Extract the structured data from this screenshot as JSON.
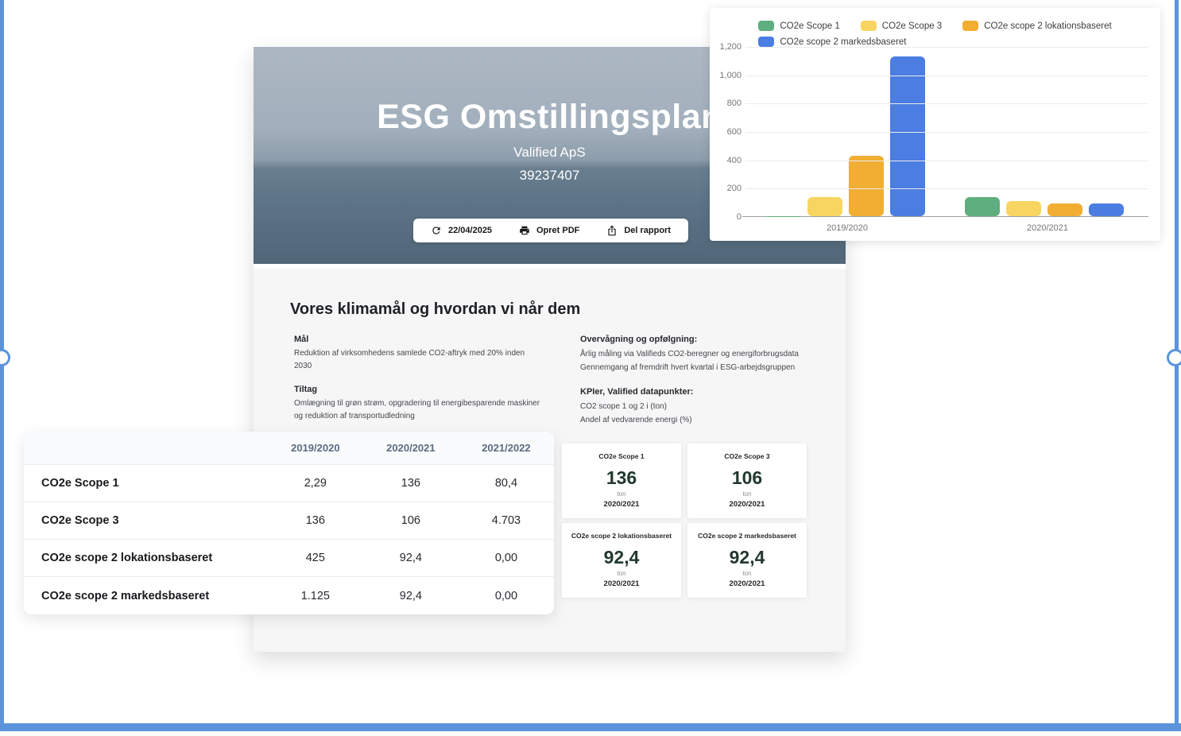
{
  "frame": {
    "accent_color": "#5b94da"
  },
  "hero": {
    "title": "ESG Omstillingsplan",
    "company": "Valified ApS",
    "company_number": "39237407",
    "toolbar": {
      "date_label": "22/04/2025",
      "pdf_label": "Opret PDF",
      "share_label": "Del rapport",
      "icons": [
        "refresh-icon",
        "printer-icon",
        "share-icon"
      ]
    }
  },
  "climate_section": {
    "heading": "Vores klimamål og hvordan vi når dem",
    "goal_label": "Mål",
    "goal_text": "Reduktion af virksomhedens samlede CO2-aftryk med 20% inden 2030",
    "actions_label": "Tiltag",
    "actions_text": "Omlægning til grøn strøm, opgradering til energibesparende maskiner og reduktion af transportudledning",
    "monitoring_label": "Overvågning og opfølgning:",
    "monitoring_lines": [
      "Årlig måling via Valifieds CO2-beregner og energiforbrugsdata",
      "Gennemgang af fremdrift hvert kvartal i ESG-arbejdsgruppen"
    ],
    "kpi_label": "KPIer, Valified datapunkter:",
    "kpi_lines": [
      "CO2 scope 1 og 2 i (ton)",
      "Andel af vedvarende energi (%)"
    ]
  },
  "table": {
    "columns": [
      "2019/2020",
      "2020/2021",
      "2021/2022"
    ],
    "rows": [
      {
        "label": "CO2e Scope 1",
        "values": [
          "2,29",
          "136",
          "80,4"
        ]
      },
      {
        "label": "CO2e Scope 3",
        "values": [
          "136",
          "106",
          "4.703"
        ]
      },
      {
        "label": "CO2e scope 2 lokationsbaseret",
        "values": [
          "425",
          "92,4",
          "0,00"
        ]
      },
      {
        "label": "CO2e scope 2 markedsbaseret",
        "values": [
          "1.125",
          "92,4",
          "0,00"
        ]
      }
    ]
  },
  "kpi_cards": [
    {
      "title": "CO2e Scope 1",
      "value": "136",
      "unit": "ton",
      "period": "2020/2021"
    },
    {
      "title": "CO2e Scope 3",
      "value": "106",
      "unit": "ton",
      "period": "2020/2021"
    },
    {
      "title": "CO2e scope 2 lokationsbaseret",
      "value": "92,4",
      "unit": "ton",
      "period": "2020/2021"
    },
    {
      "title": "CO2e scope 2 markedsbaseret",
      "value": "92,4",
      "unit": "ton",
      "period": "2020/2021"
    }
  ],
  "chart_data": {
    "type": "bar",
    "categories": [
      "2019/2020",
      "2020/2021"
    ],
    "series": [
      {
        "name": "CO2e Scope 1",
        "color": "#5fae7f",
        "values": [
          2.29,
          136
        ]
      },
      {
        "name": "CO2e Scope 3",
        "color": "#f7d560",
        "values": [
          136,
          106
        ]
      },
      {
        "name": "CO2e scope 2 lokationsbaseret",
        "color": "#f2ad33",
        "values": [
          425,
          92.4
        ]
      },
      {
        "name": "CO2e scope 2 markedsbaseret",
        "color": "#4b7de2",
        "values": [
          1125,
          92.4
        ]
      }
    ],
    "ylim": [
      0,
      1200
    ],
    "yticks": [
      "1,200",
      "1,000",
      "800",
      "600",
      "400",
      "200",
      "0"
    ],
    "grid": true,
    "legend_position": "top"
  }
}
